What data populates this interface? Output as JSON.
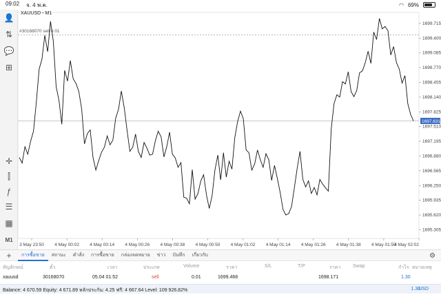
{
  "statusbar": {
    "time": "09:02",
    "date": "จ. 4 พ.ค.",
    "battery": "69%"
  },
  "chart": {
    "symbol": "XAUUSD",
    "timeframe": "M1",
    "order_label": "#30168070 sell 0.01",
    "current_price": "1697.631",
    "colors": {
      "line": "#111111",
      "order_line": "#9a9a9a",
      "price_tag": "#3b6bc4"
    }
  },
  "chart_data": {
    "type": "line",
    "y_ticks": [
      "1699.715",
      "1699.400",
      "1699.085",
      "1698.770",
      "1698.455",
      "1698.140",
      "1697.825",
      "1697.510",
      "1697.195",
      "1696.880",
      "1696.565",
      "1696.250",
      "1695.935",
      "1695.620",
      "1695.305"
    ],
    "x_ticks": [
      "3 May 23:50",
      "4 May 00:02",
      "4 May 00:14",
      "4 May 00:26",
      "4 May 00:38",
      "4 May 00:50",
      "4 May 01:02",
      "4 May 01:14",
      "4 May 01:26",
      "4 May 01:38",
      "4 May 01:50",
      "4 May 02:02"
    ],
    "ylim": [
      1695.12,
      1699.95
    ],
    "order_price": 1699.468,
    "current": 1697.631,
    "values": [
      1696.85,
      1696.73,
      1697.08,
      1696.92,
      1697.2,
      1697.41,
      1698.03,
      1698.74,
      1698.95,
      1699.46,
      1699.11,
      1699.76,
      1699.33,
      1698.36,
      1698.07,
      1697.56,
      1698.71,
      1698.48,
      1698.92,
      1698.53,
      1698.43,
      1698.26,
      1697.89,
      1697.14,
      1697.36,
      1697.44,
      1696.85,
      1696.58,
      1696.78,
      1696.96,
      1697.07,
      1697.31,
      1697.12,
      1697.22,
      1697.69,
      1697.88,
      1698.27,
      1697.91,
      1697.43,
      1696.98,
      1697.07,
      1697.35,
      1696.98,
      1696.85,
      1697.17,
      1697.05,
      1696.9,
      1696.92,
      1697.21,
      1697.41,
      1697.29,
      1696.86,
      1697.08,
      1697.39,
      1696.92,
      1696.84,
      1696.64,
      1696.74,
      1696.0,
      1695.98,
      1695.86,
      1696.59,
      1695.96,
      1696.08,
      1696.35,
      1696.48,
      1696.05,
      1695.76,
      1696.03,
      1696.58,
      1696.9,
      1696.37,
      1696.95,
      1696.43,
      1696.77,
      1696.6,
      1697.27,
      1697.62,
      1697.84,
      1697.68,
      1697.01,
      1696.95,
      1696.58,
      1696.71,
      1697.01,
      1696.8,
      1696.64,
      1696.93,
      1696.8,
      1696.36,
      1696.68,
      1696.4,
      1696.1,
      1695.74,
      1695.62,
      1695.65,
      1695.8,
      1696.2,
      1696.62,
      1696.98,
      1696.38,
      1696.22,
      1696.35,
      1696.08,
      1696.21,
      1696.05,
      1696.38,
      1696.28,
      1696.2,
      1696.13,
      1697.46,
      1698.0,
      1698.19,
      1698.14,
      1698.47,
      1698.42,
      1698.68,
      1698.26,
      1698.15,
      1698.28,
      1698.66,
      1698.7,
      1698.87,
      1699.12,
      1698.86,
      1699.53,
      1699.37,
      1699.82,
      1699.6,
      1699.65,
      1699.56,
      1699.04,
      1699.22,
      1698.88,
      1698.74,
      1698.44,
      1698.6,
      1698.0,
      1697.77,
      1697.63
    ]
  },
  "tabs": [
    {
      "label": "การซื้อขาย",
      "active": true
    },
    {
      "label": "สถานะ",
      "active": false
    },
    {
      "label": "คำสั่ง",
      "active": false
    },
    {
      "label": "การซื้อขาย",
      "active": false
    },
    {
      "label": "กล่องจดหมาย",
      "active": false
    },
    {
      "label": "ข่าว",
      "active": false
    },
    {
      "label": "บันทึก",
      "active": false
    },
    {
      "label": "เกี่ยวกับ",
      "active": false
    }
  ],
  "table": {
    "headers": [
      "สัญลักษณ์",
      "ตั๋ว",
      "เวลา",
      "ประเภท",
      "Volume",
      "ราคา",
      "S/L",
      "T/P",
      "ราคา",
      "Swap",
      "กำไร",
      "หมายเหตุ"
    ],
    "row": {
      "symbol": "xauusd",
      "ticket": "30168070",
      "time": "05.04 01:52",
      "type": "sell",
      "volume": "0.01",
      "open_price": "1699.468",
      "sl": "",
      "tp": "",
      "price": "1698.171",
      "swap": "",
      "profit": "1.30",
      "comment": ""
    }
  },
  "footer": {
    "balance_text": "Balance: 4 670.59 Equity: 4 671.89 หลักประกัน: 4.25 ฟรี: 4 667.64 Level: 109 926.82%",
    "total": "1.30",
    "currency": "USD"
  }
}
